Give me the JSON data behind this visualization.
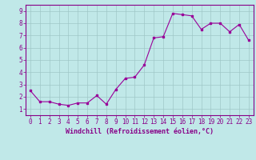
{
  "x": [
    0,
    1,
    2,
    3,
    4,
    5,
    6,
    7,
    8,
    9,
    10,
    11,
    12,
    13,
    14,
    15,
    16,
    17,
    18,
    19,
    20,
    21,
    22,
    23
  ],
  "y": [
    2.5,
    1.6,
    1.6,
    1.4,
    1.3,
    1.5,
    1.5,
    2.1,
    1.4,
    2.6,
    3.5,
    3.6,
    4.6,
    6.8,
    6.9,
    8.8,
    8.7,
    8.6,
    7.5,
    8.0,
    8.0,
    7.3,
    7.9,
    6.6
  ],
  "line_color": "#990099",
  "marker": "s",
  "marker_size": 2.0,
  "bg_color": "#c0e8e8",
  "grid_color": "#a0c8c8",
  "xlabel": "Windchill (Refroidissement éolien,°C)",
  "xlim": [
    -0.5,
    23.5
  ],
  "ylim": [
    0.5,
    9.5
  ],
  "xticks": [
    0,
    1,
    2,
    3,
    4,
    5,
    6,
    7,
    8,
    9,
    10,
    11,
    12,
    13,
    14,
    15,
    16,
    17,
    18,
    19,
    20,
    21,
    22,
    23
  ],
  "yticks": [
    1,
    2,
    3,
    4,
    5,
    6,
    7,
    8,
    9
  ],
  "xlabel_color": "#880088",
  "tick_color": "#880088",
  "axis_color": "#880088",
  "label_fontsize": 6.0,
  "tick_fontsize": 5.5
}
